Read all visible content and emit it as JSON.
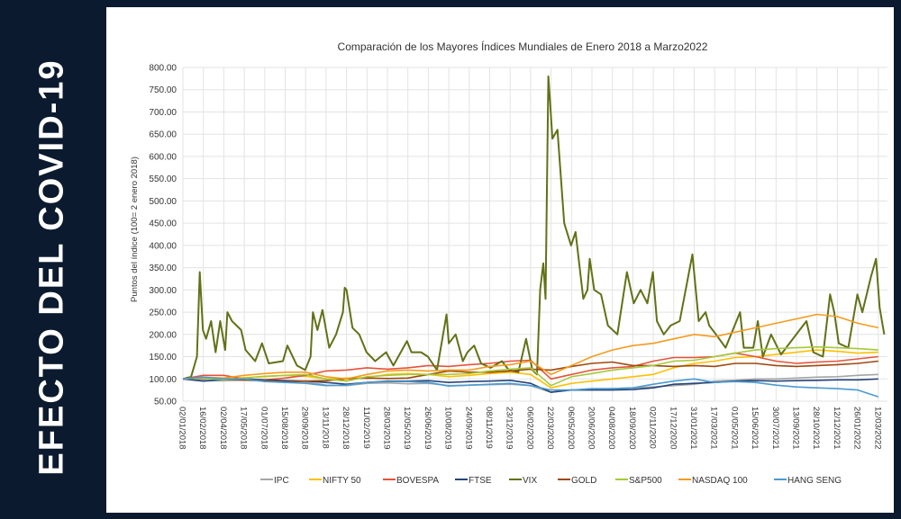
{
  "banner": {
    "text": "EFECTO DEL COVID-19"
  },
  "chart_data": {
    "type": "line",
    "title": "Comparación de los Mayores Índices Mundiales de Enero 2018 a Marzo2022",
    "xlabel": "",
    "ylabel": "Puntos del índice (100= 2 enero 2018)",
    "ylim": [
      50,
      800
    ],
    "yticks": [
      "50.00",
      "100.00",
      "150.00",
      "200.00",
      "250.00",
      "300.00",
      "350.00",
      "400.00",
      "450.00",
      "500.00",
      "550.00",
      "600.00",
      "650.00",
      "700.00",
      "750.00",
      "800.00"
    ],
    "grid": true,
    "legend_position": "bottom",
    "categories": [
      "02/01/2018",
      "16/02/2018",
      "02/04/2018",
      "17/05/2018",
      "01/07/2018",
      "15/08/2018",
      "29/09/2018",
      "13/11/2018",
      "28/12/2018",
      "11/02/2019",
      "28/03/2019",
      "12/05/2019",
      "26/06/2019",
      "10/08/2019",
      "24/09/2019",
      "08/11/2019",
      "23/12/2019",
      "06/02/2020",
      "22/03/2020",
      "06/05/2020",
      "20/06/2020",
      "04/08/2020",
      "18/09/2020",
      "02/11/2020",
      "17/12/2020",
      "31/01/2021",
      "17/03/2021",
      "01/05/2021",
      "15/06/2021",
      "30/07/2021",
      "13/09/2021",
      "28/10/2021",
      "12/12/2021",
      "26/01/2022",
      "12/03/2022"
    ],
    "series": [
      {
        "name": "IPC",
        "color": "#a5a5a5",
        "values": [
          100,
          98,
          96,
          97,
          95,
          96,
          93,
          86,
          85,
          90,
          91,
          89,
          90,
          85,
          86,
          87,
          88,
          85,
          70,
          75,
          76,
          78,
          80,
          82,
          85,
          88,
          95,
          97,
          100,
          100,
          102,
          104,
          105,
          108,
          110
        ]
      },
      {
        "name": "NIFTY 50",
        "color": "#ffc000",
        "values": [
          100,
          102,
          100,
          103,
          105,
          108,
          106,
          100,
          102,
          103,
          110,
          112,
          110,
          105,
          108,
          112,
          115,
          110,
          80,
          90,
          95,
          100,
          105,
          110,
          125,
          135,
          140,
          148,
          150,
          155,
          160,
          165,
          162,
          158,
          160
        ]
      },
      {
        "name": "BOVESPA",
        "color": "#e5533c",
        "values": [
          100,
          108,
          108,
          100,
          98,
          102,
          108,
          118,
          120,
          125,
          122,
          125,
          130,
          128,
          132,
          135,
          140,
          142,
          100,
          110,
          120,
          125,
          128,
          140,
          148,
          148,
          150,
          158,
          150,
          140,
          135,
          138,
          140,
          145,
          150
        ]
      },
      {
        "name": "FTSE",
        "color": "#264478",
        "values": [
          100,
          95,
          98,
          100,
          98,
          96,
          95,
          92,
          88,
          92,
          95,
          95,
          96,
          92,
          94,
          95,
          97,
          90,
          70,
          75,
          75,
          75,
          76,
          80,
          88,
          90,
          92,
          95,
          96,
          95,
          96,
          97,
          98,
          98,
          100
        ]
      },
      {
        "name": "VIX",
        "color": "#627117",
        "points": [
          [
            "2018-01-02",
            100
          ],
          [
            "2018-01-20",
            105
          ],
          [
            "2018-02-02",
            150
          ],
          [
            "2018-02-08",
            340
          ],
          [
            "2018-02-15",
            210
          ],
          [
            "2018-02-22",
            190
          ],
          [
            "2018-03-05",
            230
          ],
          [
            "2018-03-15",
            160
          ],
          [
            "2018-03-25",
            230
          ],
          [
            "2018-04-05",
            165
          ],
          [
            "2018-04-10",
            250
          ],
          [
            "2018-04-20",
            230
          ],
          [
            "2018-05-10",
            210
          ],
          [
            "2018-05-20",
            165
          ],
          [
            "2018-06-10",
            140
          ],
          [
            "2018-06-25",
            180
          ],
          [
            "2018-07-10",
            135
          ],
          [
            "2018-08-10",
            140
          ],
          [
            "2018-08-20",
            175
          ],
          [
            "2018-09-10",
            130
          ],
          [
            "2018-09-28",
            120
          ],
          [
            "2018-10-10",
            150
          ],
          [
            "2018-10-15",
            250
          ],
          [
            "2018-10-25",
            210
          ],
          [
            "2018-11-05",
            255
          ],
          [
            "2018-11-20",
            170
          ],
          [
            "2018-12-05",
            200
          ],
          [
            "2018-12-20",
            250
          ],
          [
            "2018-12-24",
            305
          ],
          [
            "2018-12-28",
            300
          ],
          [
            "2019-01-10",
            215
          ],
          [
            "2019-01-25",
            200
          ],
          [
            "2019-02-10",
            160
          ],
          [
            "2019-03-01",
            140
          ],
          [
            "2019-03-25",
            160
          ],
          [
            "2019-04-10",
            130
          ],
          [
            "2019-05-10",
            185
          ],
          [
            "2019-05-20",
            160
          ],
          [
            "2019-06-10",
            160
          ],
          [
            "2019-06-25",
            150
          ],
          [
            "2019-07-15",
            120
          ],
          [
            "2019-08-05",
            245
          ],
          [
            "2019-08-10",
            180
          ],
          [
            "2019-08-25",
            200
          ],
          [
            "2019-09-10",
            140
          ],
          [
            "2019-09-20",
            160
          ],
          [
            "2019-10-05",
            175
          ],
          [
            "2019-10-20",
            135
          ],
          [
            "2019-11-10",
            125
          ],
          [
            "2019-12-05",
            140
          ],
          [
            "2019-12-20",
            120
          ],
          [
            "2020-01-10",
            115
          ],
          [
            "2020-01-27",
            190
          ],
          [
            "2020-02-10",
            120
          ],
          [
            "2020-02-20",
            110
          ],
          [
            "2020-02-27",
            300
          ],
          [
            "2020-03-05",
            360
          ],
          [
            "2020-03-10",
            280
          ],
          [
            "2020-03-16",
            780
          ],
          [
            "2020-03-20",
            720
          ],
          [
            "2020-03-25",
            640
          ],
          [
            "2020-04-05",
            660
          ],
          [
            "2020-04-20",
            450
          ],
          [
            "2020-05-05",
            400
          ],
          [
            "2020-05-15",
            430
          ],
          [
            "2020-06-01",
            280
          ],
          [
            "2020-06-10",
            300
          ],
          [
            "2020-06-15",
            370
          ],
          [
            "2020-06-25",
            300
          ],
          [
            "2020-07-10",
            290
          ],
          [
            "2020-07-25",
            220
          ],
          [
            "2020-08-15",
            200
          ],
          [
            "2020-09-05",
            340
          ],
          [
            "2020-09-20",
            270
          ],
          [
            "2020-10-05",
            300
          ],
          [
            "2020-10-20",
            270
          ],
          [
            "2020-11-01",
            340
          ],
          [
            "2020-11-10",
            230
          ],
          [
            "2020-11-25",
            200
          ],
          [
            "2020-12-10",
            220
          ],
          [
            "2020-12-30",
            230
          ],
          [
            "2021-01-27",
            380
          ],
          [
            "2021-02-10",
            230
          ],
          [
            "2021-02-25",
            250
          ],
          [
            "2021-03-05",
            220
          ],
          [
            "2021-03-20",
            200
          ],
          [
            "2021-04-10",
            170
          ],
          [
            "2021-05-12",
            250
          ],
          [
            "2021-05-20",
            170
          ],
          [
            "2021-06-10",
            170
          ],
          [
            "2021-06-20",
            230
          ],
          [
            "2021-07-01",
            150
          ],
          [
            "2021-07-19",
            200
          ],
          [
            "2021-08-10",
            155
          ],
          [
            "2021-09-20",
            210
          ],
          [
            "2021-10-05",
            230
          ],
          [
            "2021-10-20",
            160
          ],
          [
            "2021-11-10",
            150
          ],
          [
            "2021-11-26",
            290
          ],
          [
            "2021-12-05",
            250
          ],
          [
            "2021-12-15",
            180
          ],
          [
            "2022-01-05",
            170
          ],
          [
            "2022-01-25",
            290
          ],
          [
            "2022-02-05",
            250
          ],
          [
            "2022-02-24",
            330
          ],
          [
            "2022-03-07",
            370
          ],
          [
            "2022-03-15",
            260
          ],
          [
            "2022-03-25",
            200
          ]
        ]
      },
      {
        "name": "GOLD",
        "color": "#9e480e",
        "values": [
          100,
          102,
          100,
          98,
          96,
          93,
          95,
          96,
          100,
          102,
          101,
          102,
          110,
          118,
          115,
          115,
          118,
          122,
          120,
          128,
          135,
          138,
          130,
          130,
          128,
          130,
          128,
          135,
          135,
          130,
          128,
          130,
          132,
          135,
          140
        ]
      },
      {
        "name": "S&P500",
        "color": "#a5c93a",
        "values": [
          100,
          102,
          98,
          102,
          106,
          108,
          110,
          100,
          95,
          105,
          108,
          110,
          110,
          110,
          112,
          118,
          122,
          125,
          85,
          105,
          112,
          120,
          125,
          130,
          140,
          142,
          150,
          158,
          165,
          168,
          170,
          172,
          170,
          168,
          165
        ]
      },
      {
        "name": "NASDAQ 100",
        "color": "#f59b1e",
        "values": [
          100,
          104,
          102,
          108,
          112,
          115,
          115,
          105,
          100,
          110,
          118,
          120,
          118,
          120,
          120,
          128,
          132,
          140,
          110,
          130,
          150,
          165,
          175,
          180,
          190,
          200,
          195,
          205,
          215,
          225,
          235,
          245,
          240,
          225,
          215
        ]
      },
      {
        "name": "HANG SENG",
        "color": "#4a9bd1",
        "values": [
          100,
          104,
          100,
          100,
          94,
          92,
          90,
          85,
          86,
          92,
          94,
          94,
          92,
          84,
          86,
          88,
          90,
          85,
          75,
          75,
          78,
          78,
          80,
          88,
          95,
          100,
          92,
          94,
          92,
          86,
          82,
          80,
          78,
          75,
          60
        ]
      }
    ]
  }
}
